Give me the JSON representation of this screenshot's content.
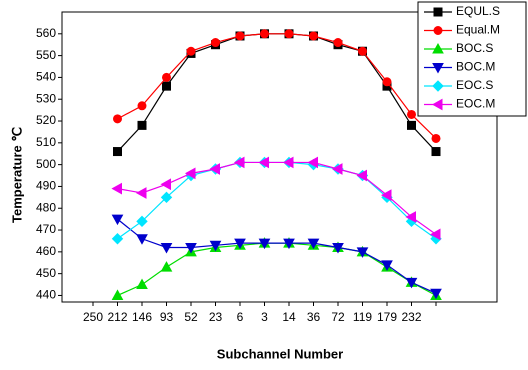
{
  "chart_data": {
    "type": "line",
    "x_label": "Subchannel Number",
    "y_label": "Temperature ℃",
    "categories": [
      "250",
      "212",
      "146",
      "93",
      "52",
      "23",
      "6",
      "3",
      "14",
      "36",
      "72",
      "119",
      "179",
      "232",
      null
    ],
    "ylim": [
      437,
      570
    ],
    "yticks": [
      440,
      450,
      460,
      470,
      480,
      490,
      500,
      510,
      520,
      530,
      540,
      550,
      560
    ],
    "legend": "top-right",
    "series": [
      {
        "name": "EQUL.S",
        "color": "#000000",
        "marker": "square",
        "values": [
          null,
          506,
          518,
          536,
          551,
          555,
          559,
          560,
          560,
          559,
          555,
          552,
          536,
          518,
          506
        ]
      },
      {
        "name": "Equal.M",
        "color": "#ff0000",
        "marker": "circle",
        "values": [
          null,
          521,
          527,
          540,
          552,
          556,
          559,
          560,
          560,
          559,
          556,
          552,
          538,
          523,
          512
        ]
      },
      {
        "name": "BOC.S",
        "color": "#00dd00",
        "marker": "triangle-up",
        "values": [
          null,
          440,
          445,
          453,
          460,
          462,
          463,
          464,
          464,
          463,
          462,
          460,
          453,
          446,
          440
        ]
      },
      {
        "name": "BOC.M",
        "color": "#0000cc",
        "marker": "triangle-down",
        "values": [
          null,
          475,
          466,
          462,
          462,
          463,
          464,
          464,
          464,
          464,
          462,
          460,
          454,
          446,
          441
        ]
      },
      {
        "name": "EOC.S",
        "color": "#00e5ff",
        "marker": "diamond",
        "values": [
          null,
          466,
          474,
          485,
          495,
          498,
          501,
          501,
          501,
          500,
          498,
          495,
          485,
          474,
          466
        ]
      },
      {
        "name": "EOC.M",
        "color": "#ee00ee",
        "marker": "triangle-left",
        "values": [
          null,
          489,
          487,
          491,
          496,
          498,
          501,
          501,
          501,
          501,
          498,
          495,
          486,
          476,
          468
        ]
      }
    ]
  }
}
